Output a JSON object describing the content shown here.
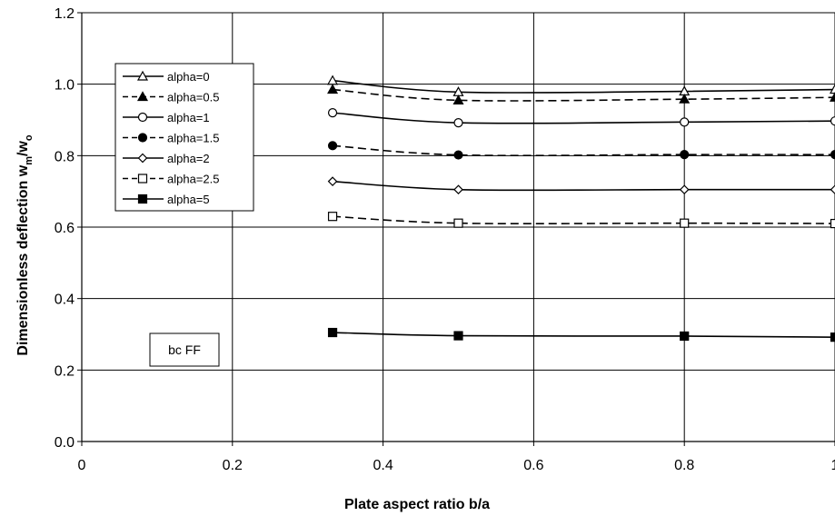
{
  "chart_data": {
    "type": "line",
    "xlabel": "Plate aspect ratio   b/a",
    "ylabel_main": "Dimensionless deflection  w",
    "ylabel_sub1": "m",
    "ylabel_mid": "/w",
    "ylabel_sub2": "o",
    "xlim": [
      0,
      1
    ],
    "ylim": [
      0,
      1.2
    ],
    "xticks": [
      "0",
      "0.2",
      "0.4",
      "0.6",
      "0.8",
      "1"
    ],
    "yticks": [
      "0.0",
      "0.2",
      "0.4",
      "0.6",
      "0.8",
      "1.0",
      "1.2"
    ],
    "grid": true,
    "legend_position": "upper-left",
    "annotation": "bc FF",
    "x": [
      0.333,
      0.5,
      0.8,
      1.0
    ],
    "series": [
      {
        "name": "alpha=0",
        "values": [
          1.01,
          0.978,
          0.98,
          0.985
        ],
        "marker": "triangle-open",
        "dash": "solid"
      },
      {
        "name": "alpha=0.5",
        "values": [
          0.985,
          0.955,
          0.958,
          0.963
        ],
        "marker": "triangle-filled",
        "dash": "dashed"
      },
      {
        "name": "alpha=1",
        "values": [
          0.92,
          0.892,
          0.894,
          0.897
        ],
        "marker": "circle-open",
        "dash": "solid"
      },
      {
        "name": "alpha=1.5",
        "values": [
          0.828,
          0.802,
          0.803,
          0.803
        ],
        "marker": "circle-filled",
        "dash": "dashed"
      },
      {
        "name": "alpha=2",
        "values": [
          0.728,
          0.705,
          0.705,
          0.705
        ],
        "marker": "diamond-open",
        "dash": "solid"
      },
      {
        "name": "alpha=2.5",
        "values": [
          0.63,
          0.611,
          0.611,
          0.61
        ],
        "marker": "square-open",
        "dash": "dashed"
      },
      {
        "name": "alpha=5",
        "values": [
          0.305,
          0.296,
          0.295,
          0.292
        ],
        "marker": "square-filled",
        "dash": "solid"
      }
    ]
  }
}
